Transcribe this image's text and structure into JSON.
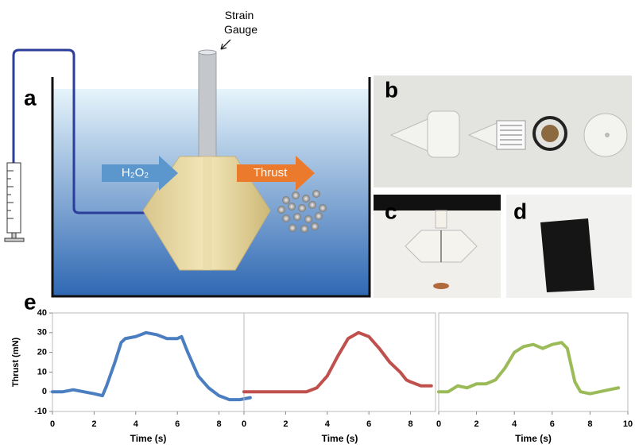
{
  "panels": {
    "a": "a",
    "b": "b",
    "c": "c",
    "d": "d",
    "e": "e"
  },
  "diagram": {
    "strain_gauge": [
      "Strain",
      "Gauge"
    ],
    "inlet": "H₂O₂",
    "thrust": "Thrust"
  },
  "chart_data": [
    {
      "type": "line",
      "color": "#4a7ec0",
      "x_label": "Time (s)",
      "y_label": "Thrust (mN)",
      "xlim": [
        0,
        9.2
      ],
      "xticks": [
        0,
        2,
        4,
        6,
        8
      ],
      "ylim": [
        -10,
        40
      ],
      "yticks": [
        -10,
        0,
        10,
        20,
        30,
        40
      ],
      "x": [
        0,
        0.5,
        1,
        1.5,
        2,
        2.4,
        2.6,
        3,
        3.3,
        3.5,
        4,
        4.5,
        5,
        5.5,
        6,
        6.2,
        6.5,
        7,
        7.5,
        8,
        8.5,
        9,
        9.5
      ],
      "values": [
        0,
        0,
        1,
        0,
        -1,
        -2,
        3,
        15,
        25,
        27,
        28,
        30,
        29,
        27,
        27,
        28,
        20,
        8,
        2,
        -2,
        -4,
        -4,
        -3
      ]
    },
    {
      "type": "line",
      "color": "#c0504d",
      "x_label": "Time (s)",
      "xlim": [
        0,
        9.2
      ],
      "xticks": [
        0,
        2,
        4,
        6,
        8
      ],
      "ylim": [
        -10,
        40
      ],
      "x": [
        0,
        1,
        2,
        3,
        3.5,
        4,
        4.5,
        5,
        5.5,
        6,
        6.5,
        7,
        7.5,
        7.8,
        8,
        8.5,
        9
      ],
      "values": [
        0,
        0,
        0,
        0,
        2,
        8,
        18,
        27,
        30,
        28,
        22,
        15,
        10,
        6,
        5,
        3,
        3
      ]
    },
    {
      "type": "line",
      "color": "#9bbb59",
      "x_label": "Time (s)",
      "xlim": [
        0,
        10
      ],
      "xticks": [
        0,
        2,
        4,
        6,
        8,
        10
      ],
      "ylim": [
        -10,
        40
      ],
      "x": [
        0,
        0.5,
        1,
        1.5,
        2,
        2.5,
        3,
        3.5,
        4,
        4.5,
        5,
        5.5,
        6,
        6.5,
        6.8,
        7.2,
        7.5,
        8,
        8.5,
        9,
        9.5
      ],
      "values": [
        0,
        0,
        3,
        2,
        4,
        4,
        6,
        12,
        20,
        23,
        24,
        22,
        24,
        25,
        22,
        5,
        0,
        -1,
        0,
        1,
        2
      ]
    }
  ]
}
